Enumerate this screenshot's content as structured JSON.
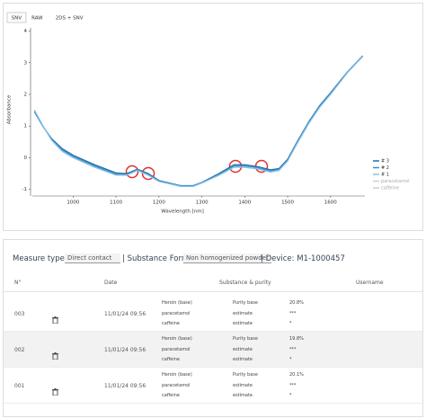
{
  "tabs": [
    "SNV",
    "RAW",
    "2DS + SNV"
  ],
  "chart_data": {
    "type": "line",
    "x_label": "Wavelength [nm]",
    "y_label": "Absorbance",
    "x": [
      910,
      930,
      950,
      975,
      1000,
      1050,
      1100,
      1125,
      1150,
      1175,
      1200,
      1250,
      1280,
      1300,
      1340,
      1375,
      1400,
      1430,
      1460,
      1480,
      1500,
      1520,
      1550,
      1575,
      1600,
      1640,
      1675
    ],
    "series": [
      {
        "name": "# 3",
        "color": "#1f6fa8",
        "values": [
          1.45,
          0.98,
          0.6,
          0.28,
          0.08,
          -0.22,
          -0.48,
          -0.5,
          -0.36,
          -0.5,
          -0.72,
          -0.88,
          -0.88,
          -0.78,
          -0.5,
          -0.22,
          -0.22,
          -0.28,
          -0.38,
          -0.34,
          -0.05,
          0.45,
          1.15,
          1.65,
          2.05,
          2.72,
          3.22
        ]
      },
      {
        "name": "# 2",
        "color": "#3a8fc7",
        "values": [
          1.48,
          0.99,
          0.57,
          0.24,
          0.04,
          -0.26,
          -0.52,
          -0.53,
          -0.38,
          -0.53,
          -0.74,
          -0.9,
          -0.9,
          -0.79,
          -0.53,
          -0.26,
          -0.26,
          -0.31,
          -0.42,
          -0.37,
          -0.08,
          0.42,
          1.12,
          1.62,
          2.02,
          2.7,
          3.2
        ]
      },
      {
        "name": "# 1",
        "color": "#86c0e6",
        "values": [
          1.5,
          1.0,
          0.55,
          0.2,
          0.0,
          -0.3,
          -0.55,
          -0.55,
          -0.4,
          -0.55,
          -0.75,
          -0.9,
          -0.9,
          -0.8,
          -0.55,
          -0.3,
          -0.3,
          -0.35,
          -0.45,
          -0.4,
          -0.1,
          0.4,
          1.1,
          1.6,
          2.0,
          2.7,
          3.2
        ]
      },
      {
        "name": "paracetamol",
        "color": "#cfcfcf",
        "values": [
          null,
          null,
          null,
          null,
          null,
          null,
          null,
          null,
          null,
          null,
          null,
          null,
          null,
          null,
          null,
          null,
          null,
          null,
          null,
          null,
          null,
          null,
          null,
          null,
          null,
          null,
          null
        ]
      },
      {
        "name": "caffeine",
        "color": "#cfcfcf",
        "values": [
          null,
          null,
          null,
          null,
          null,
          null,
          null,
          null,
          null,
          null,
          null,
          null,
          null,
          null,
          null,
          null,
          null,
          null,
          null,
          null,
          null,
          null,
          null,
          null,
          null,
          null,
          null
        ]
      }
    ],
    "xlim": [
      905,
      1680
    ],
    "ylim": [
      -1.15,
      4.1
    ],
    "xticks": [
      1000,
      1100,
      1200,
      1300,
      1400,
      1500,
      1600
    ],
    "yticks": [
      -1,
      0,
      1,
      2,
      3,
      4
    ],
    "grid": false,
    "legend": "lower right"
  },
  "filters": {
    "measure_type_label": "Measure type:",
    "measure_type": "Direct contact",
    "substance_form_label": "| Substance Form:",
    "substance_form": "Non homogenized powder",
    "device": "| Device: M1-1000457"
  },
  "table": {
    "headers": [
      "N°",
      "Date",
      "Substance & purity",
      "Username"
    ],
    "rows": [
      {
        "id": "003",
        "date": "11/01/24 09:56",
        "substances": [
          [
            "Heroin (base)",
            "Purity base",
            "20.8%"
          ],
          [
            "paracetamol",
            "estimate",
            "***"
          ],
          [
            "caffeine",
            "estimate",
            "*"
          ]
        ]
      },
      {
        "id": "002",
        "date": "11/01/24 09:56",
        "substances": [
          [
            "Heroin (base)",
            "Purity base",
            "19.8%"
          ],
          [
            "paracetamol",
            "estimate",
            "***"
          ],
          [
            "caffeine",
            "estimate",
            "*"
          ]
        ]
      },
      {
        "id": "001",
        "date": "11/01/24 09:56",
        "substances": [
          [
            "Heroin (base)",
            "Purity base",
            "20.1%"
          ],
          [
            "paracetamol",
            "estimate",
            "***"
          ],
          [
            "caffeine",
            "estimate",
            "*"
          ]
        ]
      }
    ]
  }
}
